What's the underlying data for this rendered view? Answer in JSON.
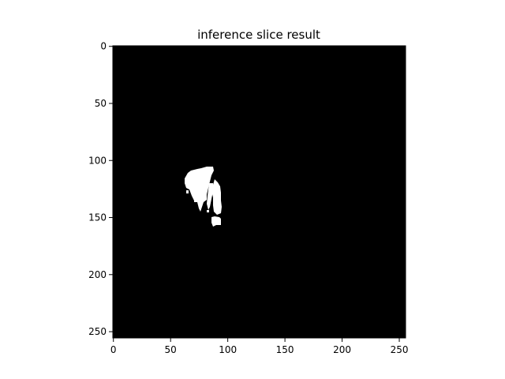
{
  "title": "inference slice result",
  "image": {
    "description_colors": {
      "background": "#000000",
      "mask": "#ffffff"
    },
    "rows": 256,
    "cols": 256
  },
  "axes": {
    "x_ticks": [
      "0",
      "50",
      "100",
      "150",
      "200",
      "250"
    ],
    "y_ticks": [
      "0",
      "50",
      "100",
      "150",
      "200",
      "250"
    ],
    "x_tick_values": [
      0,
      50,
      100,
      150,
      200,
      250
    ],
    "y_tick_values": [
      0,
      50,
      100,
      150,
      200,
      250
    ],
    "x_range": [
      -0.5,
      255.5
    ],
    "y_range": [
      -0.5,
      255.5
    ]
  }
}
